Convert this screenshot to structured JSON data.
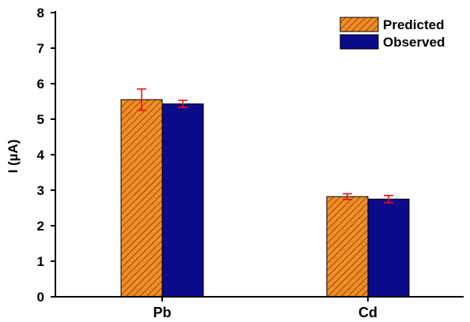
{
  "chart_data": {
    "type": "bar",
    "title": "",
    "xlabel": "",
    "ylabel": "I (µA)",
    "ylim": [
      0,
      8
    ],
    "yticks": [
      0,
      1,
      2,
      3,
      4,
      5,
      6,
      7,
      8
    ],
    "categories": [
      "Pb",
      "Cd"
    ],
    "series": [
      {
        "name": "Predicted",
        "values": [
          5.55,
          2.82
        ],
        "errors": [
          0.3,
          0.08
        ],
        "color": "#F28C28",
        "pattern": "diagonal-hatch"
      },
      {
        "name": "Observed",
        "values": [
          5.43,
          2.75
        ],
        "errors": [
          0.1,
          0.1
        ],
        "color": "#0A0A8A",
        "pattern": "solid"
      }
    ],
    "error_bar_color": "#E8101A",
    "legend_position": "top-right",
    "grid": false
  }
}
